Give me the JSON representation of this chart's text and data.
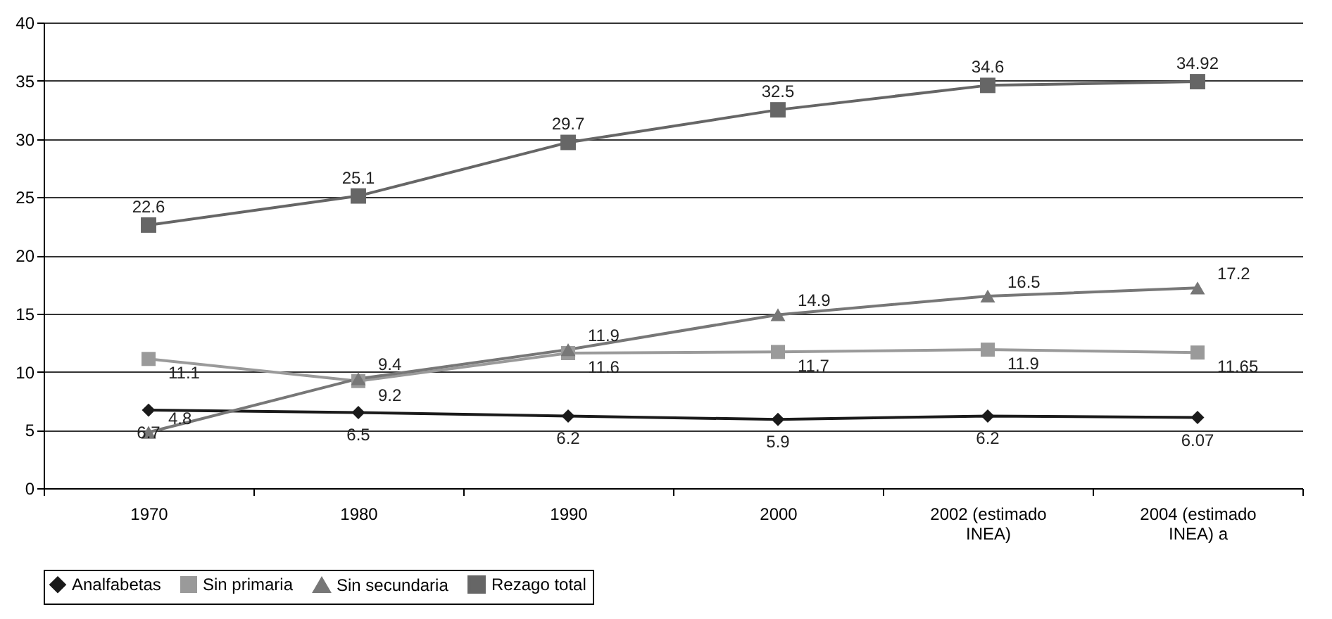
{
  "chart_data": {
    "type": "line",
    "categories": [
      "1970",
      "1980",
      "1990",
      "2000",
      "2002 (estimado INEA)",
      "2004 (estimado INEA) a"
    ],
    "series": [
      {
        "name": "Analfabetas",
        "color": "#1a1a1a",
        "marker": "diamond",
        "values": [
          6.7,
          6.5,
          6.2,
          5.9,
          6.2,
          6.07
        ]
      },
      {
        "name": "Sin primaria",
        "color": "#9a9a9a",
        "marker": "square",
        "values": [
          11.1,
          9.2,
          11.6,
          11.7,
          11.9,
          11.65
        ]
      },
      {
        "name": "Sin secundaria",
        "color": "#777777",
        "marker": "triangle",
        "values": [
          4.8,
          9.4,
          11.9,
          14.9,
          16.5,
          17.2
        ]
      },
      {
        "name": "Rezago total",
        "color": "#666666",
        "marker": "square",
        "values": [
          22.6,
          25.1,
          29.7,
          32.5,
          34.6,
          34.92
        ]
      }
    ],
    "ylim": [
      0,
      40
    ],
    "yticks": [
      0,
      5,
      10,
      15,
      20,
      25,
      30,
      35,
      40
    ],
    "grid": "y",
    "legend": "bottom",
    "data_labels": true
  }
}
